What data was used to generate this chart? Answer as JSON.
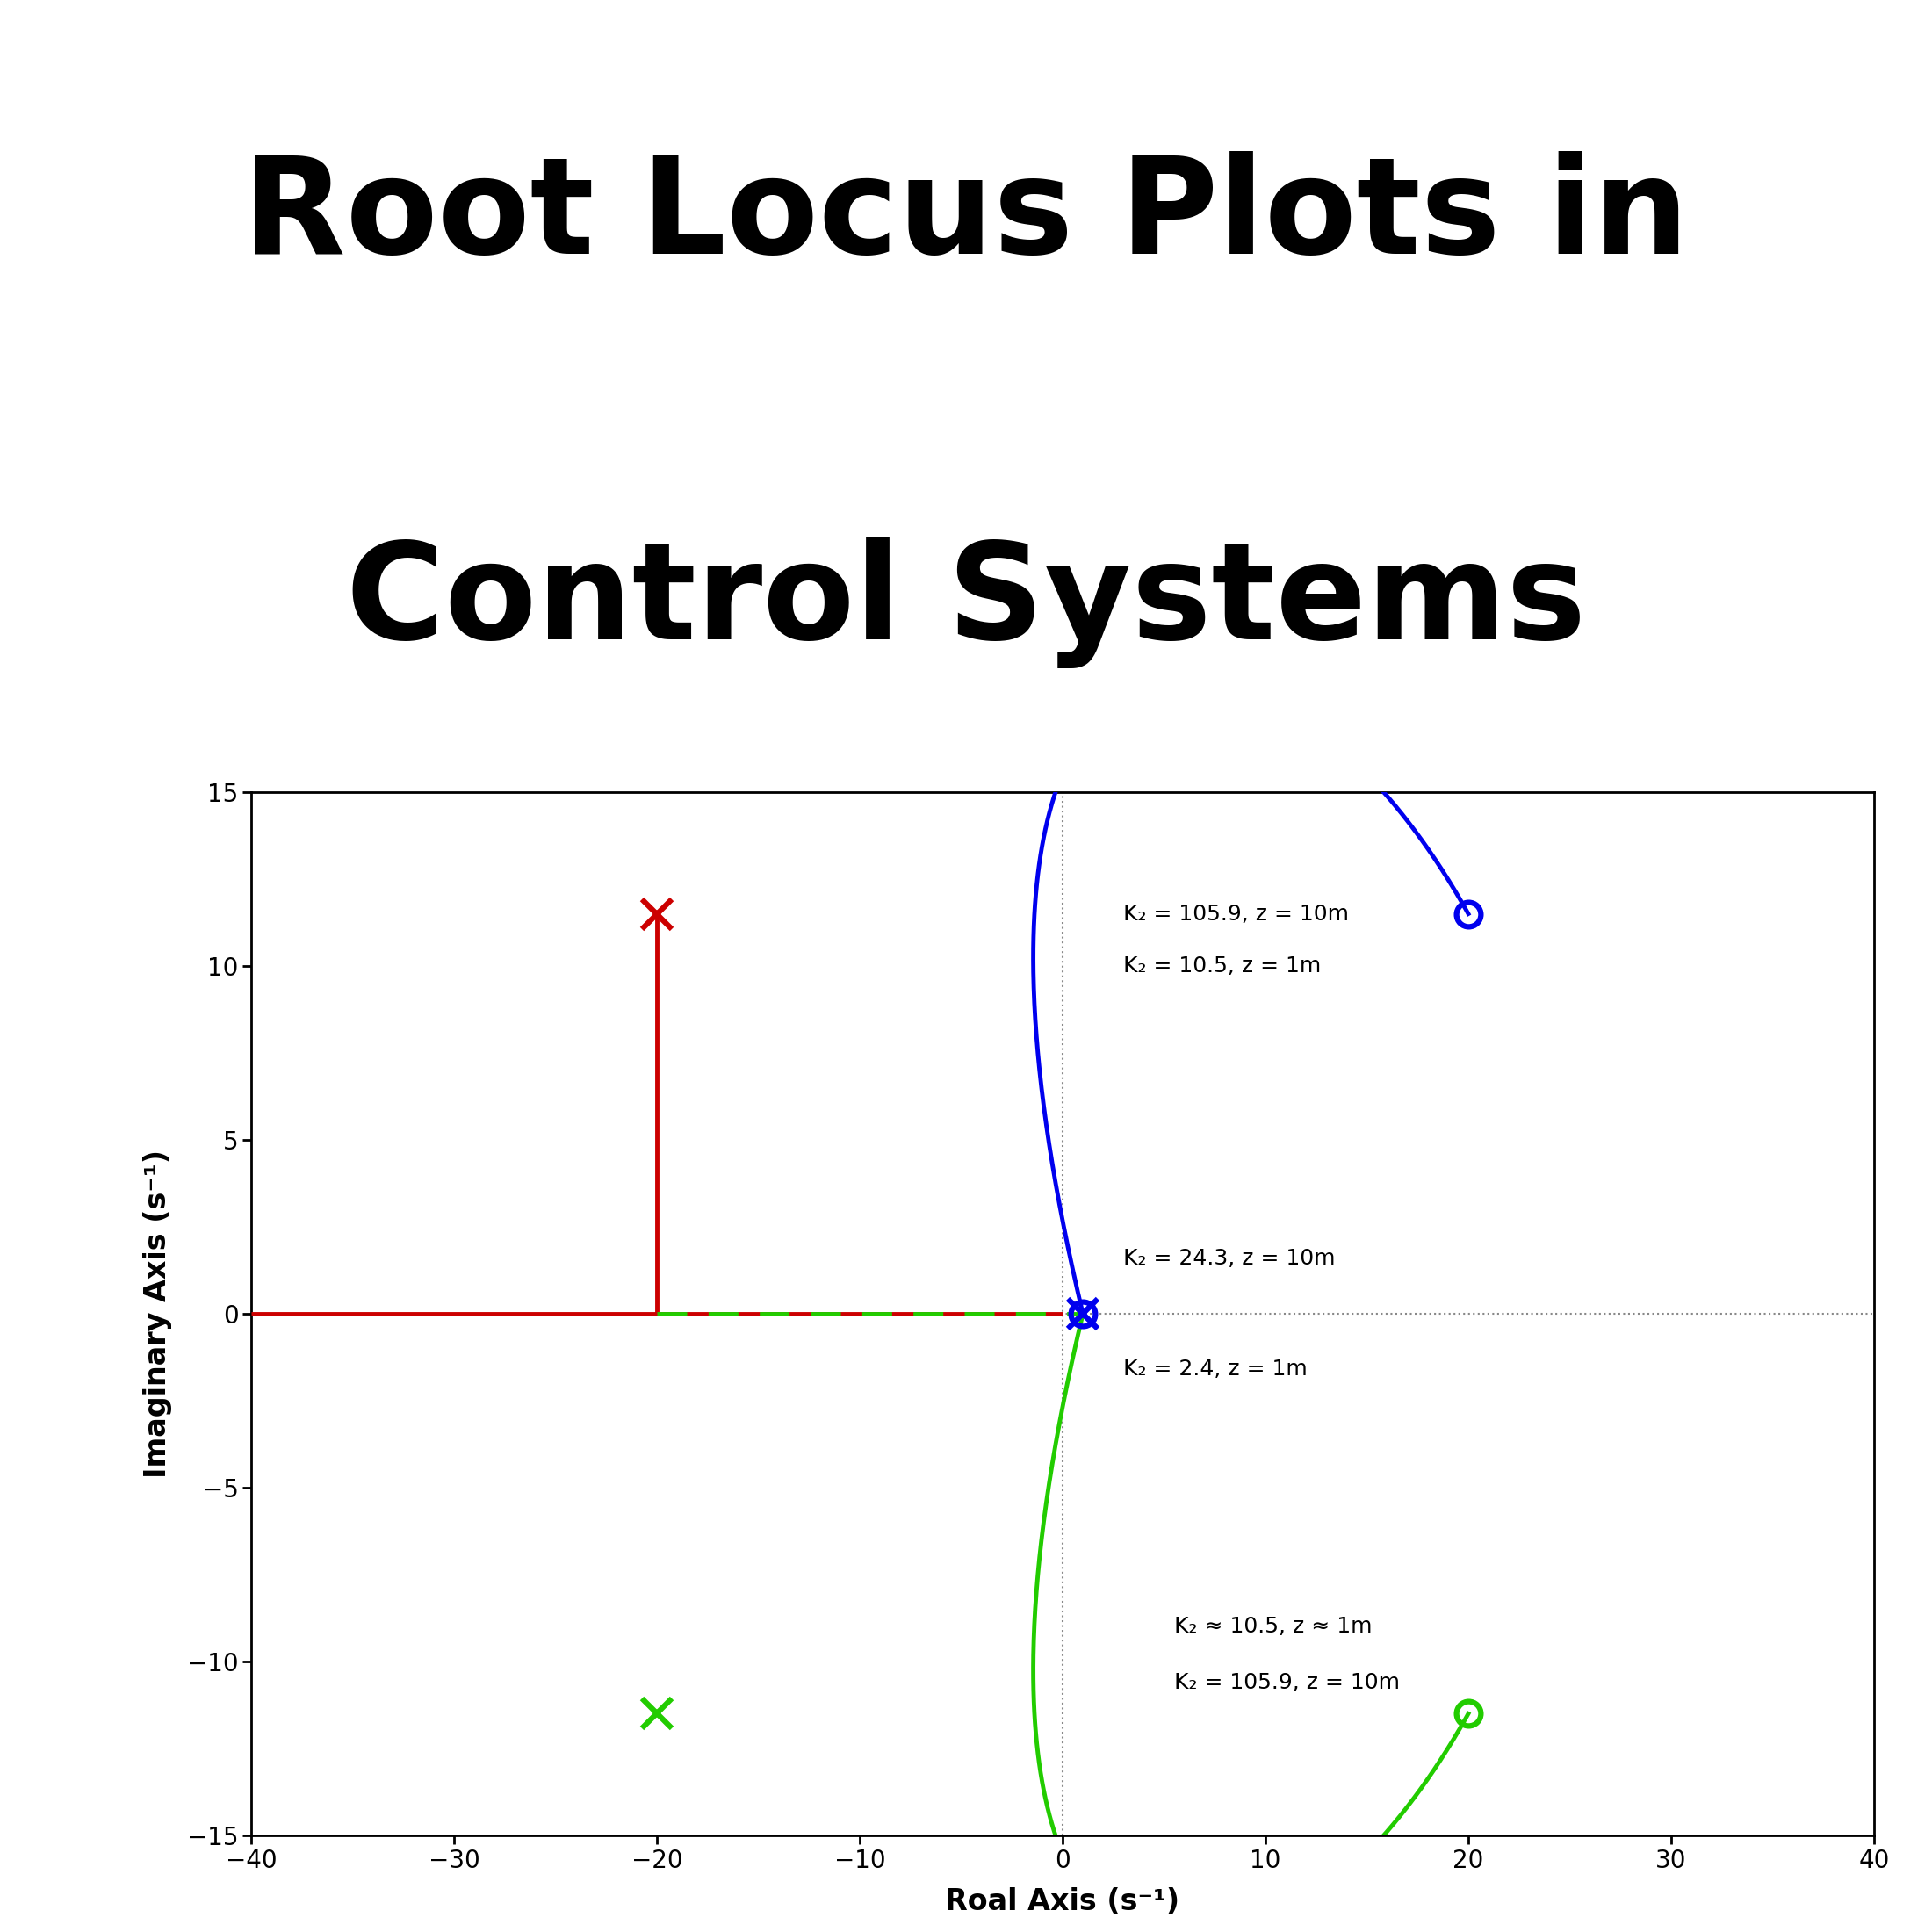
{
  "title_line1": "Root Locus Plots in",
  "title_line2": "Control Systems",
  "title_fontsize": 110,
  "title_fontweight": "bold",
  "xlabel": "Roal Axis (s⁻¹)",
  "ylabel": "Imaginary Axis (s⁻¹)",
  "xlim": [
    -40,
    40
  ],
  "ylim": [
    -15,
    15
  ],
  "xticks": [
    -40,
    -30,
    -20,
    -10,
    0,
    10,
    20,
    30,
    40
  ],
  "yticks": [
    -15,
    -10,
    -5,
    0,
    5,
    10,
    15
  ],
  "pole_red": [
    -20,
    11.5
  ],
  "pole_green": [
    -20,
    -11.5
  ],
  "zero_blue": [
    20,
    11.5
  ],
  "zero_green": [
    20,
    -11.5
  ],
  "crossing_point": [
    1.0,
    0.0
  ],
  "annotation_upper_1": "K₂ = 105.9, z = 10m",
  "annotation_upper_2": "K₂ = 10.5, z = 1m",
  "annotation_mid_upper": "K₂ = 24.3, z = 10m",
  "annotation_mid_lower": "K₂ = 2.4, z = 1m",
  "annotation_lower_1": "K₂ ≈ 10.5, z ≈ 1m",
  "annotation_lower_2": "K₂ = 105.9, z = 10m",
  "color_blue": "#0000EE",
  "color_green": "#22CC00",
  "color_red": "#CC0000",
  "color_gray_dot": "#888888",
  "background_color": "#FFFFFF",
  "fig_background": "#FFFFFF",
  "curve_lw": 3.5,
  "axis_lw": 3.5,
  "tick_labelsize": 20,
  "label_fontsize": 24,
  "annot_fontsize": 18
}
